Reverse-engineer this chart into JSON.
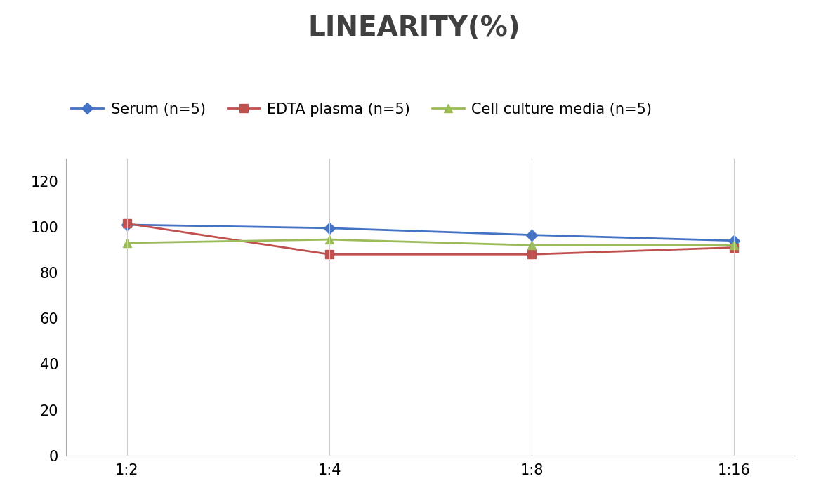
{
  "title": "LINEARITY(%)",
  "title_fontsize": 28,
  "title_fontweight": "bold",
  "title_color": "#404040",
  "x_labels": [
    "1:2",
    "1:4",
    "1:8",
    "1:16"
  ],
  "x_positions": [
    0,
    1,
    2,
    3
  ],
  "ylim": [
    0,
    130
  ],
  "yticks": [
    0,
    20,
    40,
    60,
    80,
    100,
    120
  ],
  "series": [
    {
      "label": "Serum (n=5)",
      "values": [
        101,
        99.5,
        96.5,
        94
      ],
      "color": "#4472C4",
      "marker": "D",
      "markersize": 8,
      "linewidth": 2
    },
    {
      "label": "EDTA plasma (n=5)",
      "values": [
        101.5,
        88,
        88,
        91
      ],
      "color": "#C0504D",
      "marker": "s",
      "markersize": 8,
      "linewidth": 2
    },
    {
      "label": "Cell culture media (n=5)",
      "values": [
        93,
        94.5,
        92,
        92
      ],
      "color": "#9BBB59",
      "marker": "^",
      "markersize": 8,
      "linewidth": 2
    }
  ],
  "legend_fontsize": 15,
  "tick_fontsize": 15,
  "grid_color": "#CCCCCC",
  "grid_linewidth": 0.8,
  "background_color": "#FFFFFF",
  "spine_color": "#AAAAAA"
}
